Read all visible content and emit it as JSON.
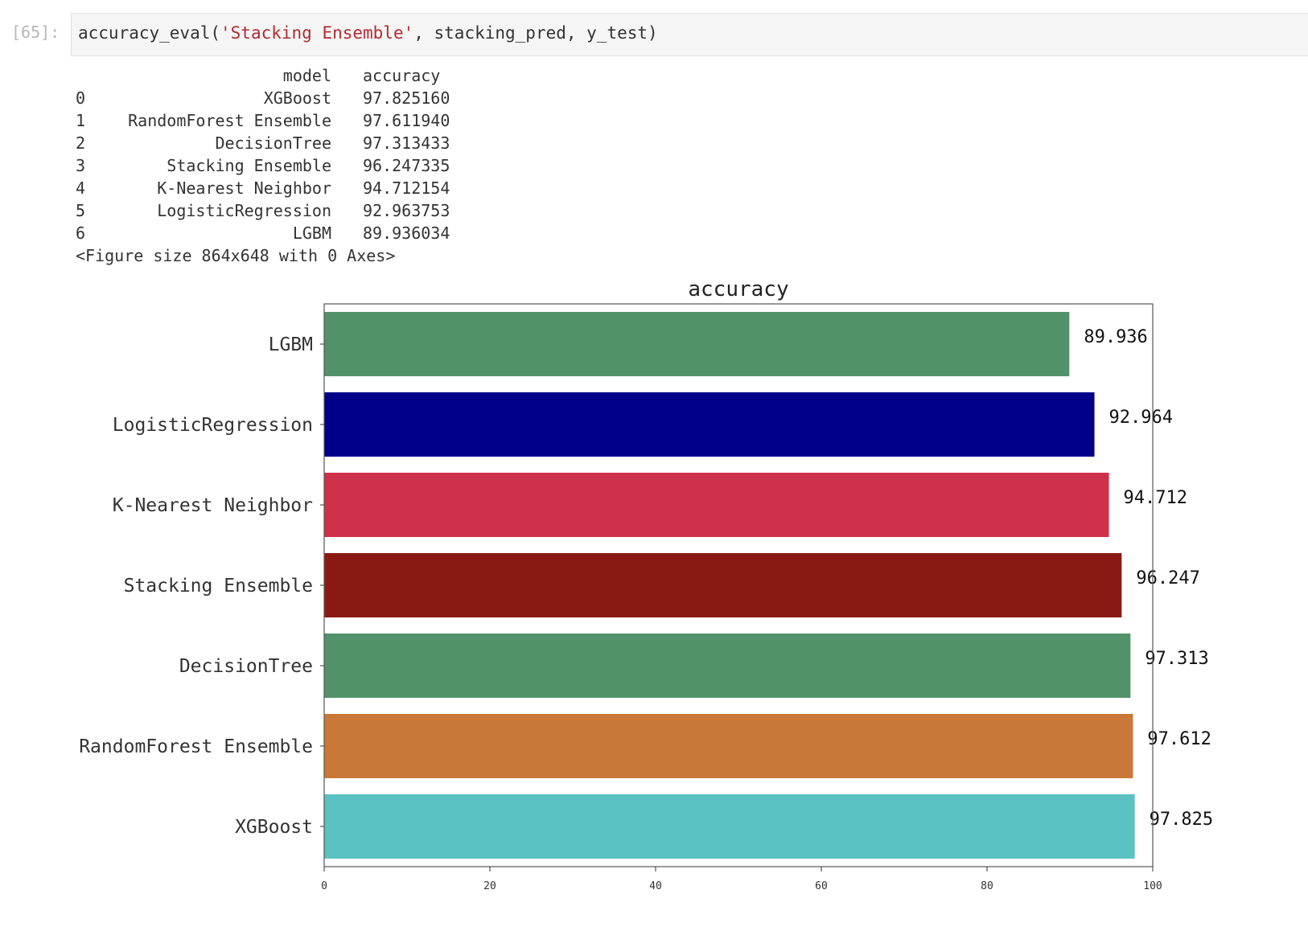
{
  "cell": {
    "prompt": "[65]:",
    "code_fn": "accuracy_eval(",
    "code_str": "'Stacking Ensemble'",
    "code_rest": ", stacking_pred, y_test)"
  },
  "output": {
    "header_model": "model",
    "header_accuracy": "accuracy",
    "rows": [
      {
        "idx": "0",
        "model": "XGBoost",
        "accuracy": "97.825160"
      },
      {
        "idx": "1",
        "model": "RandomForest Ensemble",
        "accuracy": "97.611940"
      },
      {
        "idx": "2",
        "model": "DecisionTree",
        "accuracy": "97.313433"
      },
      {
        "idx": "3",
        "model": "Stacking Ensemble",
        "accuracy": "96.247335"
      },
      {
        "idx": "4",
        "model": "K-Nearest Neighbor",
        "accuracy": "94.712154"
      },
      {
        "idx": "5",
        "model": "LogisticRegression",
        "accuracy": "92.963753"
      },
      {
        "idx": "6",
        "model": "LGBM",
        "accuracy": "89.936034"
      }
    ],
    "figure_note": "<Figure size 864x648 with 0 Axes>"
  },
  "chart_data": {
    "type": "bar",
    "orientation": "horizontal",
    "title": "accuracy",
    "xlabel": "",
    "ylabel": "",
    "xlim": [
      0,
      100
    ],
    "xticks": [
      0,
      20,
      40,
      60,
      80,
      100
    ],
    "categories": [
      "LGBM",
      "LogisticRegression",
      "K-Nearest Neighbor",
      "Stacking Ensemble",
      "DecisionTree",
      "RandomForest Ensemble",
      "XGBoost"
    ],
    "values": [
      89.936,
      92.964,
      94.712,
      96.247,
      97.313,
      97.612,
      97.825
    ],
    "value_labels": [
      "89.936",
      "92.964",
      "94.712",
      "96.247",
      "97.313",
      "97.612",
      "97.825"
    ],
    "colors": [
      "#52926a",
      "#00008b",
      "#cf304a",
      "#8b1913",
      "#52926a",
      "#c97837",
      "#5ac2c2"
    ]
  }
}
